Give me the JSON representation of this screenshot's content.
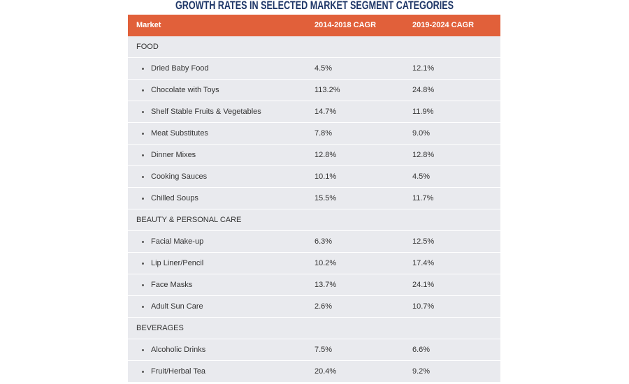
{
  "title": "GROWTH RATES IN SELECTED MARKET SEGMENT CATEGORIES",
  "table": {
    "header": [
      "Market",
      "2014-2018 CAGR",
      "2019-2024 CAGR"
    ],
    "sections": [
      {
        "title": "FOOD",
        "rows": [
          [
            "Dried Baby Food",
            "4.5%",
            "12.1%"
          ],
          [
            "Chocolate with Toys",
            "113.2%",
            "24.8%"
          ],
          [
            "Shelf Stable Fruits & Vegetables",
            "14.7%",
            "11.9%"
          ],
          [
            "Meat Substitutes",
            "7.8%",
            "9.0%"
          ],
          [
            "Dinner Mixes",
            "12.8%",
            "12.8%"
          ],
          [
            "Cooking Sauces",
            "10.1%",
            "4.5%"
          ],
          [
            "Chilled Soups",
            "15.5%",
            "11.7%"
          ]
        ]
      },
      {
        "title": "BEAUTY & PERSONAL CARE",
        "rows": [
          [
            "Facial Make-up",
            "6.3%",
            "12.5%"
          ],
          [
            "Lip Liner/Pencil",
            "10.2%",
            "17.4%"
          ],
          [
            "Face Masks",
            "13.7%",
            "24.1%"
          ],
          [
            "Adult Sun Care",
            "2.6%",
            "10.7%"
          ]
        ]
      },
      {
        "title": "BEVERAGES",
        "rows": [
          [
            "Alcoholic Drinks",
            "7.5%",
            "6.6%"
          ],
          [
            "Fruit/Herbal Tea",
            "20.4%",
            "9.2%"
          ]
        ]
      }
    ]
  }
}
